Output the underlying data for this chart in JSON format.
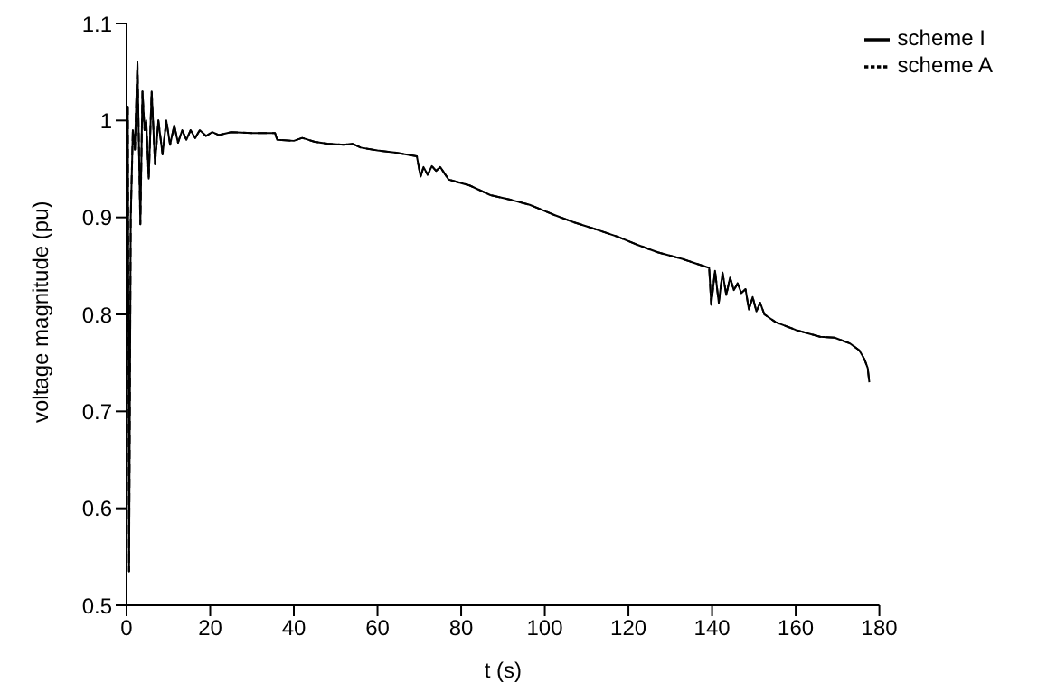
{
  "chart_data": {
    "type": "line",
    "xlabel": "t (s)",
    "ylabel": "voltage magnitude (pu)",
    "x": [
      0,
      0.3,
      0.6,
      1.0,
      1.5,
      2.0,
      2.6,
      3.3,
      3.8,
      4.3,
      4.7,
      5.3,
      6.0,
      6.8,
      7.6,
      8.6,
      9.5,
      10.4,
      11.4,
      12.3,
      13.3,
      14.3,
      15.3,
      16.4,
      17.5,
      19,
      20.5,
      22,
      25,
      30,
      35.5,
      36,
      40,
      42,
      45,
      48,
      52,
      54,
      56,
      60,
      64,
      69.4,
      70.3,
      71,
      72,
      73,
      74,
      75,
      77,
      82,
      87,
      92,
      96.4,
      102,
      106.9,
      112,
      117.5,
      122,
      127,
      133,
      139.3,
      139.8,
      140.7,
      141.6,
      142.5,
      143.4,
      144.3,
      145.2,
      146.1,
      147,
      148,
      148.8,
      149.7,
      150.6,
      151.5,
      152.5,
      155.2,
      160,
      165.8,
      169.3,
      173,
      175.2,
      176.4,
      177.2,
      177.6
    ],
    "series": [
      {
        "name": "scheme I",
        "color": "#000000",
        "line_style": "solid",
        "values": [
          1.014,
          1.014,
          0.535,
          0.9,
          0.99,
          0.97,
          1.06,
          0.893,
          1.03,
          0.99,
          1.0,
          0.94,
          1.03,
          0.955,
          1.0,
          0.965,
          1.0,
          0.975,
          0.995,
          0.977,
          0.99,
          0.98,
          0.99,
          0.982,
          0.99,
          0.984,
          0.988,
          0.985,
          0.988,
          0.987,
          0.987,
          0.98,
          0.979,
          0.982,
          0.978,
          0.976,
          0.975,
          0.976,
          0.972,
          0.969,
          0.967,
          0.963,
          0.942,
          0.952,
          0.944,
          0.953,
          0.948,
          0.952,
          0.939,
          0.933,
          0.923,
          0.918,
          0.913,
          0.903,
          0.895,
          0.888,
          0.88,
          0.872,
          0.864,
          0.857,
          0.848,
          0.81,
          0.845,
          0.812,
          0.843,
          0.82,
          0.838,
          0.825,
          0.832,
          0.822,
          0.826,
          0.805,
          0.818,
          0.803,
          0.812,
          0.8,
          0.792,
          0.784,
          0.777,
          0.776,
          0.77,
          0.763,
          0.754,
          0.745,
          0.73
        ]
      },
      {
        "name": "scheme A",
        "color": "#000000",
        "line_style": "dashed",
        "values": [
          1.014,
          1.014,
          0.535,
          0.9,
          0.99,
          0.97,
          1.06,
          0.893,
          1.03,
          0.99,
          1.0,
          0.94,
          1.03,
          0.955,
          1.0,
          0.965,
          1.0,
          0.975,
          0.995,
          0.977,
          0.99,
          0.98,
          0.99,
          0.982,
          0.99,
          0.984,
          0.988,
          0.985,
          0.988,
          0.987,
          0.987,
          0.98,
          0.979,
          0.982,
          0.978,
          0.976,
          0.975,
          0.976,
          0.972,
          0.969,
          0.967,
          0.963,
          0.942,
          0.952,
          0.944,
          0.953,
          0.948,
          0.952,
          0.939,
          0.933,
          0.923,
          0.918,
          0.913,
          0.903,
          0.895,
          0.888,
          0.88,
          0.872,
          0.864,
          0.857,
          0.848,
          0.81,
          0.845,
          0.812,
          0.843,
          0.82,
          0.838,
          0.825,
          0.832,
          0.822,
          0.826,
          0.805,
          0.818,
          0.803,
          0.812,
          0.8,
          0.792,
          0.784,
          0.777,
          0.776,
          0.77,
          0.763,
          0.754,
          0.745,
          0.73
        ]
      }
    ],
    "xlim": [
      0,
      180
    ],
    "xticks": [
      0,
      20,
      40,
      60,
      80,
      100,
      120,
      140,
      160,
      180
    ],
    "ylim": [
      0.5,
      1.1
    ],
    "yticks": [
      0.5,
      0.6,
      0.7,
      0.8,
      0.9,
      1,
      1.1
    ],
    "grid": false,
    "legend": "top right",
    "marker": "none"
  }
}
